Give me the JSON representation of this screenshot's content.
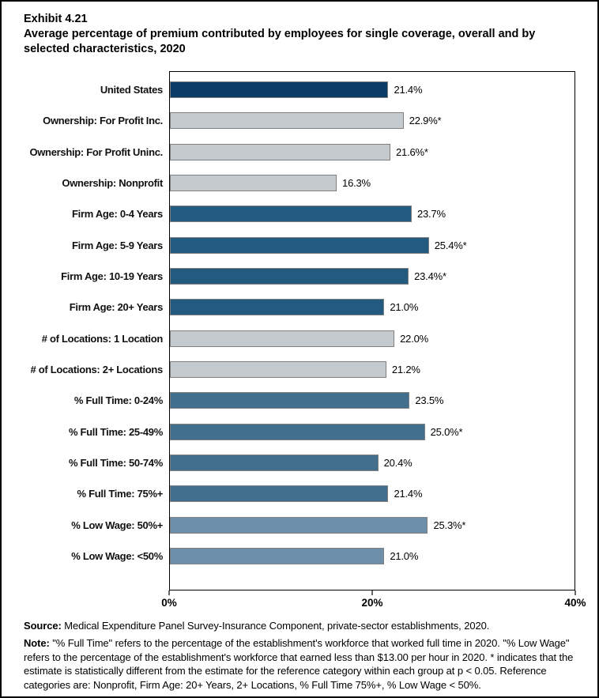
{
  "header": {
    "exhibit": "Exhibit 4.21",
    "title": "Average percentage of premium contributed by employees for single coverage, overall and by selected characteristics, 2020"
  },
  "chart_data": {
    "type": "bar",
    "orientation": "horizontal",
    "title": "Average percentage of premium contributed by employees for single coverage, overall and by selected characteristics, 2020",
    "xlabel": "",
    "ylabel": "",
    "xlim": [
      0,
      40
    ],
    "grid": false,
    "legend": "none",
    "x_ticks": [
      {
        "value": 0,
        "label": "0%"
      },
      {
        "value": 20,
        "label": "20%"
      },
      {
        "value": 40,
        "label": "40%"
      }
    ],
    "bar_border_color": "#808080",
    "group_colors": {
      "overall": "#0B3B66",
      "ownership": "#C5CACF",
      "firm_age": "#235A80",
      "locations": "#C5CACF",
      "full_time": "#426F8E",
      "low_wage": "#6E8FAA"
    },
    "categories": [
      "United States",
      "Ownership: For Profit Inc.",
      "Ownership: For Profit Uninc.",
      "Ownership: Nonprofit",
      "Firm Age: 0-4 Years",
      "Firm Age: 5-9 Years",
      "Firm Age: 10-19 Years",
      "Firm Age: 20+ Years",
      "# of Locations: 1 Location",
      "# of Locations: 2+ Locations",
      "% Full Time: 0-24%",
      "% Full Time: 25-49%",
      "% Full Time: 50-74%",
      "% Full Time: 75%+",
      "% Low Wage: 50%+",
      "% Low Wage: <50%"
    ],
    "values": [
      21.4,
      22.9,
      21.6,
      16.3,
      23.7,
      25.4,
      23.4,
      21.0,
      22.0,
      21.2,
      23.5,
      25.0,
      20.4,
      21.4,
      25.3,
      21.0
    ],
    "bars": [
      {
        "label": "United States",
        "value": 21.4,
        "display": "21.4%",
        "group": "overall"
      },
      {
        "label": "Ownership: For Profit Inc.",
        "value": 22.9,
        "display": "22.9%*",
        "group": "ownership"
      },
      {
        "label": "Ownership: For Profit Uninc.",
        "value": 21.6,
        "display": "21.6%*",
        "group": "ownership"
      },
      {
        "label": "Ownership: Nonprofit",
        "value": 16.3,
        "display": "16.3%",
        "group": "ownership"
      },
      {
        "label": "Firm Age: 0-4 Years",
        "value": 23.7,
        "display": "23.7%",
        "group": "firm_age"
      },
      {
        "label": "Firm Age: 5-9 Years",
        "value": 25.4,
        "display": "25.4%*",
        "group": "firm_age"
      },
      {
        "label": "Firm Age: 10-19 Years",
        "value": 23.4,
        "display": "23.4%*",
        "group": "firm_age"
      },
      {
        "label": "Firm Age: 20+ Years",
        "value": 21.0,
        "display": "21.0%",
        "group": "firm_age"
      },
      {
        "label": "# of Locations: 1 Location",
        "value": 22.0,
        "display": "22.0%",
        "group": "locations"
      },
      {
        "label": "# of Locations: 2+ Locations",
        "value": 21.2,
        "display": "21.2%",
        "group": "locations"
      },
      {
        "label": "% Full Time: 0-24%",
        "value": 23.5,
        "display": "23.5%",
        "group": "full_time"
      },
      {
        "label": "% Full Time: 25-49%",
        "value": 25.0,
        "display": "25.0%*",
        "group": "full_time"
      },
      {
        "label": "% Full Time: 50-74%",
        "value": 20.4,
        "display": "20.4%",
        "group": "full_time"
      },
      {
        "label": "% Full Time: 75%+",
        "value": 21.4,
        "display": "21.4%",
        "group": "full_time"
      },
      {
        "label": "% Low Wage: 50%+",
        "value": 25.3,
        "display": "25.3%*",
        "group": "low_wage"
      },
      {
        "label": "% Low Wage: <50%",
        "value": 21.0,
        "display": "21.0%",
        "group": "low_wage"
      }
    ]
  },
  "footer": {
    "source_label": "Source:",
    "source_text": "Medical Expenditure Panel Survey-Insurance Component, private-sector establishments, 2020.",
    "note_label": "Note:",
    "note_text": "\"% Full Time\" refers to the percentage of the establishment's workforce that worked full time in 2020. \"% Low Wage\" refers to the percentage of the establishment's workforce that earned less than $13.00 per hour in 2020. * indicates that the estimate is statistically different from the estimate for the reference category within each group at p < 0.05.  Reference categories are: Nonprofit, Firm Age: 20+ Years, 2+ Locations, % Full Time 75%+, % Low Wage < 50%."
  }
}
